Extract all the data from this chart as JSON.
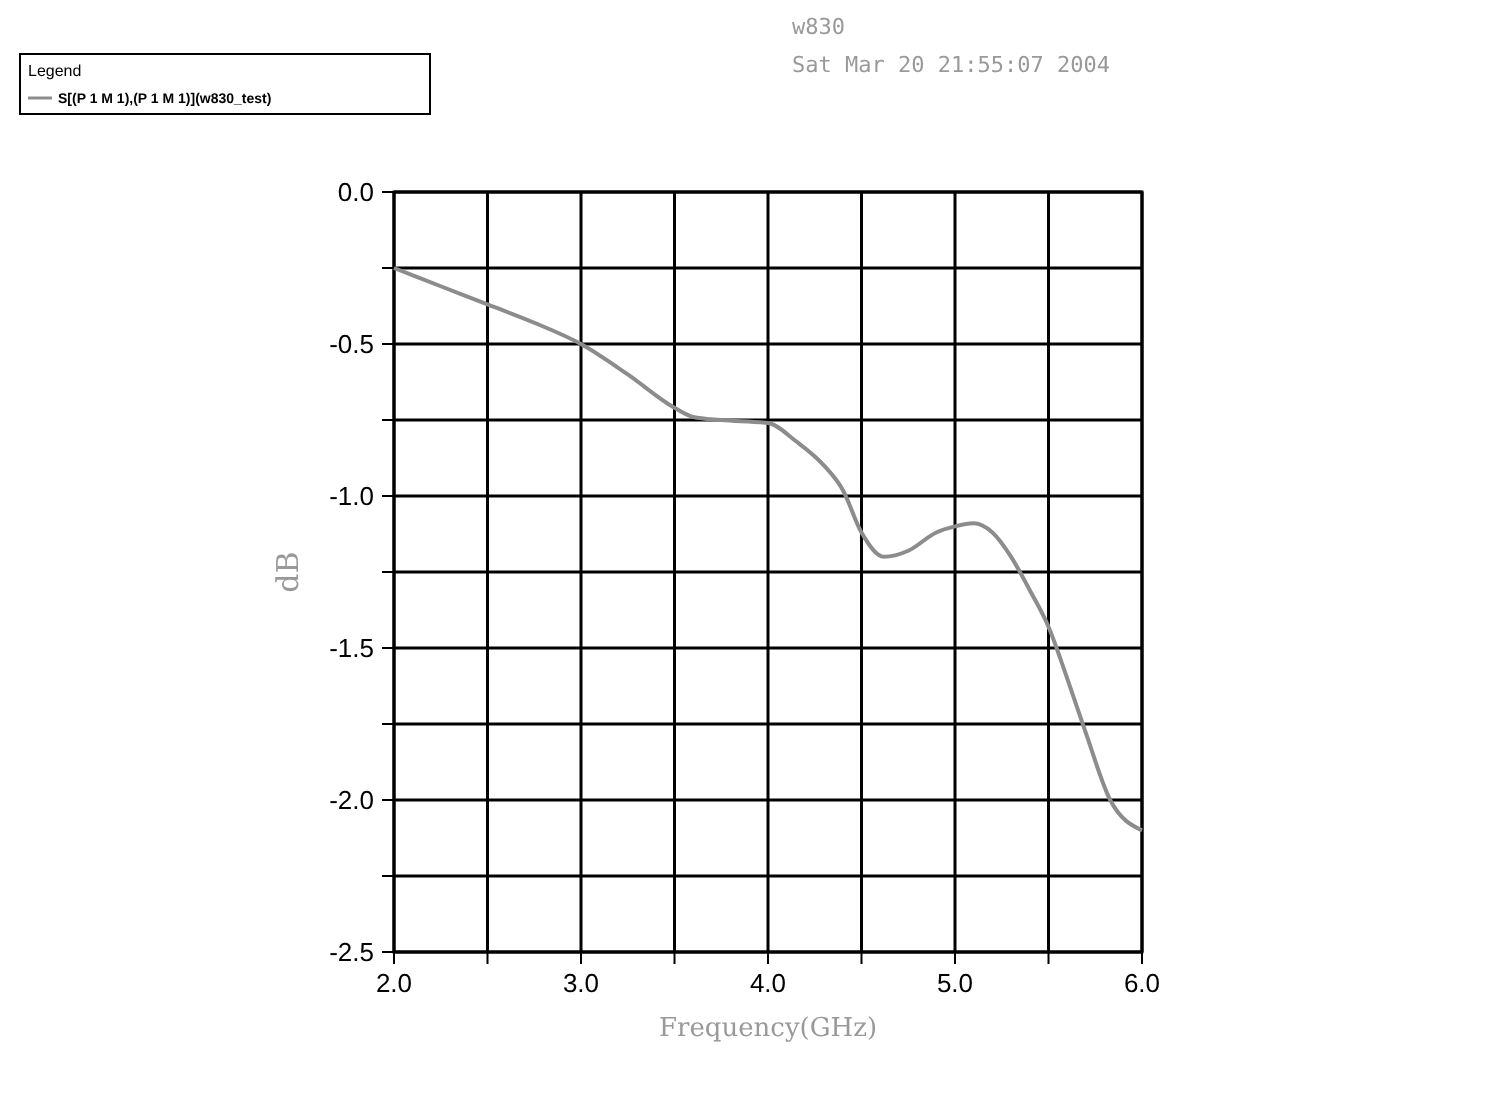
{
  "chart_data": {
    "type": "line",
    "title": "w830",
    "subtitle": "Sat Mar 20 21:55:07 2004",
    "xlabel": "Frequency(GHz)",
    "ylabel": "dB",
    "legend_title": "Legend",
    "legend": "top left",
    "grid": true,
    "xlim": [
      2,
      6
    ],
    "ylim": [
      -2.5,
      0
    ],
    "xticks": [
      {
        "value": 2,
        "label": "2.0"
      },
      {
        "value": 2.5,
        "label": null
      },
      {
        "value": 3,
        "label": "3.0"
      },
      {
        "value": 3.5,
        "label": null
      },
      {
        "value": 4,
        "label": "4.0"
      },
      {
        "value": 4.5,
        "label": null
      },
      {
        "value": 5,
        "label": "5.0"
      },
      {
        "value": 5.5,
        "label": null
      },
      {
        "value": 6,
        "label": "6.0"
      }
    ],
    "yticks": [
      {
        "value": 0,
        "label": "0.0"
      },
      {
        "value": -0.25,
        "label": null
      },
      {
        "value": -0.5,
        "label": "-0.5"
      },
      {
        "value": -0.75,
        "label": null
      },
      {
        "value": -1,
        "label": "-1.0"
      },
      {
        "value": -1.25,
        "label": null
      },
      {
        "value": -1.5,
        "label": "-1.5"
      },
      {
        "value": -1.75,
        "label": null
      },
      {
        "value": -2,
        "label": "-2.0"
      },
      {
        "value": -2.25,
        "label": null
      },
      {
        "value": -2.5,
        "label": "-2.5"
      }
    ],
    "series": [
      {
        "name": "S[(P 1 M 1),(P 1 M 1)](w830_test)",
        "color": "#8c8c8c",
        "x": [
          2,
          2.25,
          2.5,
          2.75,
          3,
          3.25,
          3.5,
          3.6,
          3.75,
          4,
          4.15,
          4.3,
          4.4,
          4.5,
          4.62,
          4.75,
          4.9,
          5,
          5.1,
          5.2,
          5.3,
          5.4,
          5.5,
          5.6,
          5.7,
          5.83,
          6
        ],
        "values": [
          -0.25,
          -0.31,
          -0.37,
          -0.43,
          -0.5,
          -0.6,
          -0.71,
          -0.74,
          -0.75,
          -0.76,
          -0.82,
          -0.9,
          -0.98,
          -1.12,
          -1.2,
          -1.18,
          -1.12,
          -1.1,
          -1.09,
          -1.12,
          -1.2,
          -1.31,
          -1.43,
          -1.6,
          -1.78,
          -2,
          -2.1
        ]
      }
    ]
  }
}
